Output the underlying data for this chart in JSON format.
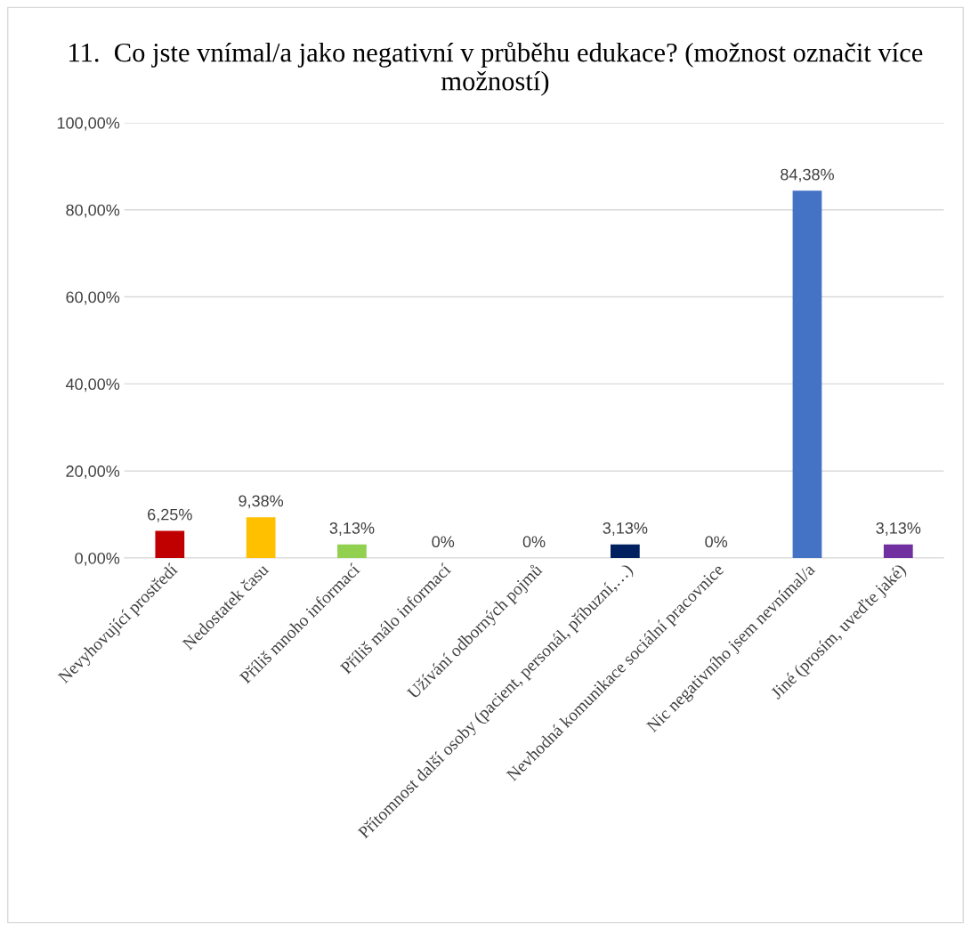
{
  "chart_data": {
    "type": "bar",
    "title": "11.  Co jste vnímal/a jako negativní v průběhu edukace? (možnost označit více možností)",
    "categories": [
      "Nevyhovující prostředí",
      "Nedostatek času",
      "Příliš mnoho informací",
      "Příliš málo informací",
      "Užívání odborných pojmů",
      "Přítomnost další osoby (pacient, personál, příbuzní,…)",
      "Nevhodná komunikace sociální pracovnice",
      "Nic negativního jsem nevnímal/a",
      "Jiné (prosím, uveďte jaké)"
    ],
    "values": [
      6.25,
      9.38,
      3.13,
      0,
      0,
      3.13,
      0,
      84.38,
      3.13
    ],
    "value_labels": [
      "6,25%",
      "9,38%",
      "3,13%",
      "0%",
      "0%",
      "3,13%",
      "0%",
      "84,38%",
      "3,13%"
    ],
    "colors": [
      "#c00000",
      "#ffc000",
      "#92d050",
      "#00b050",
      "#00b0f0",
      "#002060",
      "#ff0000",
      "#4472c4",
      "#7030a0"
    ],
    "ylim": [
      0,
      100
    ],
    "yticks": [
      {
        "value": 0,
        "label": "0,00%"
      },
      {
        "value": 20,
        "label": "20,00%"
      },
      {
        "value": 40,
        "label": "40,00%"
      },
      {
        "value": 60,
        "label": "60,00%"
      },
      {
        "value": 80,
        "label": "80,00%"
      },
      {
        "value": 100,
        "label": "100,00%"
      }
    ],
    "grid": "y",
    "legend": false
  }
}
